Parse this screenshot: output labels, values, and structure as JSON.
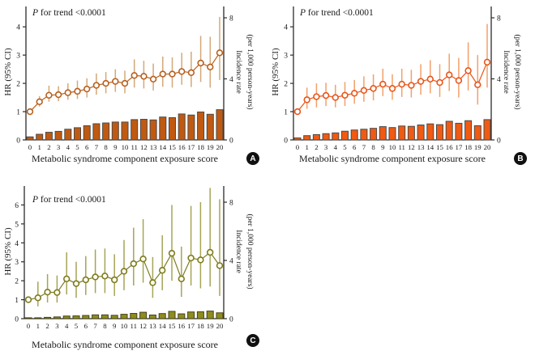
{
  "figure": {
    "background": "#ffffff",
    "axis_color": "#2b2b2b",
    "text_color": "#1a1a1a"
  },
  "chart_data": [
    {
      "type": "combo-errorbar-line-bar",
      "panel_label": "A",
      "p_italic": "P",
      "p_rest": " for trend <0.0001",
      "xlabel": "Metabolic syndrome component exposure score",
      "ylabel_left": "HR (95% CI)",
      "ylabel_right_1": "Incidence rate",
      "ylabel_right_2": "(per 1,000 person-years)",
      "ylim_left": [
        0,
        4.72
      ],
      "yticks_left": [
        0,
        1,
        2,
        3,
        4
      ],
      "ylim_right": [
        0,
        8
      ],
      "yticks_right": [
        0,
        4,
        8
      ],
      "categories": [
        0,
        1,
        2,
        3,
        4,
        5,
        6,
        7,
        8,
        9,
        10,
        11,
        12,
        13,
        14,
        15,
        16,
        17,
        18,
        19,
        20
      ],
      "hr": [
        1.0,
        1.35,
        1.58,
        1.6,
        1.67,
        1.72,
        1.8,
        1.93,
        2.0,
        2.07,
        2.0,
        2.28,
        2.25,
        2.15,
        2.33,
        2.33,
        2.42,
        2.38,
        2.72,
        2.58,
        3.08
      ],
      "ci_low": [
        0.95,
        1.18,
        1.35,
        1.37,
        1.42,
        1.45,
        1.5,
        1.6,
        1.65,
        1.7,
        1.65,
        1.85,
        1.82,
        1.75,
        1.88,
        1.85,
        1.95,
        1.87,
        2.05,
        1.85,
        2.12
      ],
      "ci_high": [
        1.06,
        1.55,
        1.92,
        1.9,
        2.0,
        2.1,
        2.18,
        2.35,
        2.4,
        2.5,
        2.45,
        2.85,
        2.8,
        2.7,
        2.95,
        2.92,
        3.08,
        3.12,
        3.68,
        3.65,
        4.35
      ],
      "incidence": [
        0.2,
        0.37,
        0.5,
        0.56,
        0.7,
        0.8,
        0.93,
        1.06,
        1.11,
        1.17,
        1.17,
        1.33,
        1.35,
        1.31,
        1.5,
        1.46,
        1.7,
        1.63,
        1.83,
        1.68,
        1.98
      ],
      "colors": {
        "line": "#b8601e",
        "errbar": "#d4a878",
        "bar": "#c05a11",
        "bar_border": "#4a4a4a",
        "marker_fill": "#ffffff"
      }
    },
    {
      "type": "combo-errorbar-line-bar",
      "panel_label": "B",
      "p_italic": "P",
      "p_rest": " for trend <0.0001",
      "xlabel": "Metabolic syndrome component exposure score",
      "ylabel_left": "HR (95% CI)",
      "ylabel_right_1": "Incidence rate",
      "ylabel_right_2": "(per 1,000 person-years)",
      "ylim_left": [
        0,
        4.72
      ],
      "yticks_left": [
        0,
        1,
        2,
        3,
        4
      ],
      "ylim_right": [
        0,
        8
      ],
      "yticks_right": [
        0,
        4,
        8
      ],
      "categories": [
        0,
        1,
        2,
        3,
        4,
        5,
        6,
        7,
        8,
        9,
        10,
        11,
        12,
        13,
        14,
        15,
        16,
        17,
        18,
        19,
        20
      ],
      "hr": [
        1.0,
        1.42,
        1.53,
        1.57,
        1.5,
        1.58,
        1.65,
        1.75,
        1.82,
        1.97,
        1.82,
        1.97,
        1.93,
        2.07,
        2.15,
        2.03,
        2.3,
        2.1,
        2.45,
        1.95,
        2.75
      ],
      "ci_low": [
        0.95,
        1.1,
        1.15,
        1.2,
        1.15,
        1.2,
        1.28,
        1.35,
        1.4,
        1.55,
        1.42,
        1.52,
        1.5,
        1.6,
        1.65,
        1.52,
        1.73,
        1.5,
        1.75,
        1.25,
        1.85
      ],
      "ci_high": [
        1.06,
        1.85,
        2.0,
        2.02,
        1.95,
        2.05,
        2.12,
        2.25,
        2.32,
        2.52,
        2.32,
        2.52,
        2.48,
        2.68,
        2.82,
        2.68,
        3.05,
        2.9,
        3.45,
        3.0,
        4.1
      ],
      "incidence": [
        0.13,
        0.28,
        0.35,
        0.41,
        0.46,
        0.57,
        0.65,
        0.7,
        0.76,
        0.87,
        0.81,
        0.91,
        0.89,
        0.98,
        1.05,
        1.0,
        1.22,
        1.09,
        1.26,
        0.93,
        1.33
      ],
      "colors": {
        "line": "#e8551a",
        "errbar": "#f2a06a",
        "bar": "#f05a12",
        "bar_border": "#4a4a4a",
        "marker_fill": "#ffffff"
      }
    },
    {
      "type": "combo-errorbar-line-bar",
      "panel_label": "C",
      "p_italic": "P",
      "p_rest": " for trend <0.0001",
      "xlabel": "Metabolic syndrome component exposure score",
      "ylabel_left": "HR (95% CI)",
      "ylabel_right_1": "Incidence rate",
      "ylabel_right_2": "(per 1,000 person-years)",
      "ylim_left": [
        0,
        7.0
      ],
      "yticks_left": [
        0,
        1,
        2,
        3,
        4,
        5,
        6
      ],
      "ylim_right": [
        0,
        8
      ],
      "yticks_right": [
        0,
        4,
        8
      ],
      "categories": [
        0,
        1,
        2,
        3,
        4,
        5,
        6,
        7,
        8,
        9,
        10,
        11,
        12,
        13,
        14,
        15,
        16,
        17,
        18,
        19,
        20
      ],
      "hr": [
        1.0,
        1.1,
        1.4,
        1.38,
        2.1,
        1.85,
        2.05,
        2.2,
        2.25,
        2.05,
        2.5,
        2.9,
        3.15,
        1.9,
        2.55,
        3.45,
        2.1,
        3.2,
        3.1,
        3.5,
        2.8
      ],
      "ci_low": [
        0.92,
        0.65,
        0.85,
        0.85,
        1.28,
        1.1,
        1.25,
        1.35,
        1.35,
        1.2,
        1.5,
        1.75,
        1.9,
        1.1,
        1.5,
        2.0,
        1.15,
        1.75,
        1.6,
        1.7,
        1.2
      ],
      "ci_high": [
        1.1,
        1.95,
        2.35,
        2.28,
        3.5,
        3.0,
        3.3,
        3.65,
        3.7,
        3.4,
        4.15,
        4.8,
        5.25,
        3.25,
        4.4,
        6.0,
        3.8,
        5.95,
        6.15,
        6.9,
        6.3
      ],
      "incidence": [
        0.06,
        0.06,
        0.09,
        0.12,
        0.18,
        0.19,
        0.22,
        0.26,
        0.26,
        0.23,
        0.3,
        0.36,
        0.44,
        0.25,
        0.35,
        0.5,
        0.33,
        0.46,
        0.47,
        0.52,
        0.4
      ],
      "colors": {
        "line": "#7d7b22",
        "errbar": "#a6a455",
        "bar": "#8f8c1d",
        "bar_border": "#44431a",
        "marker_fill": "#fffff2"
      }
    }
  ]
}
